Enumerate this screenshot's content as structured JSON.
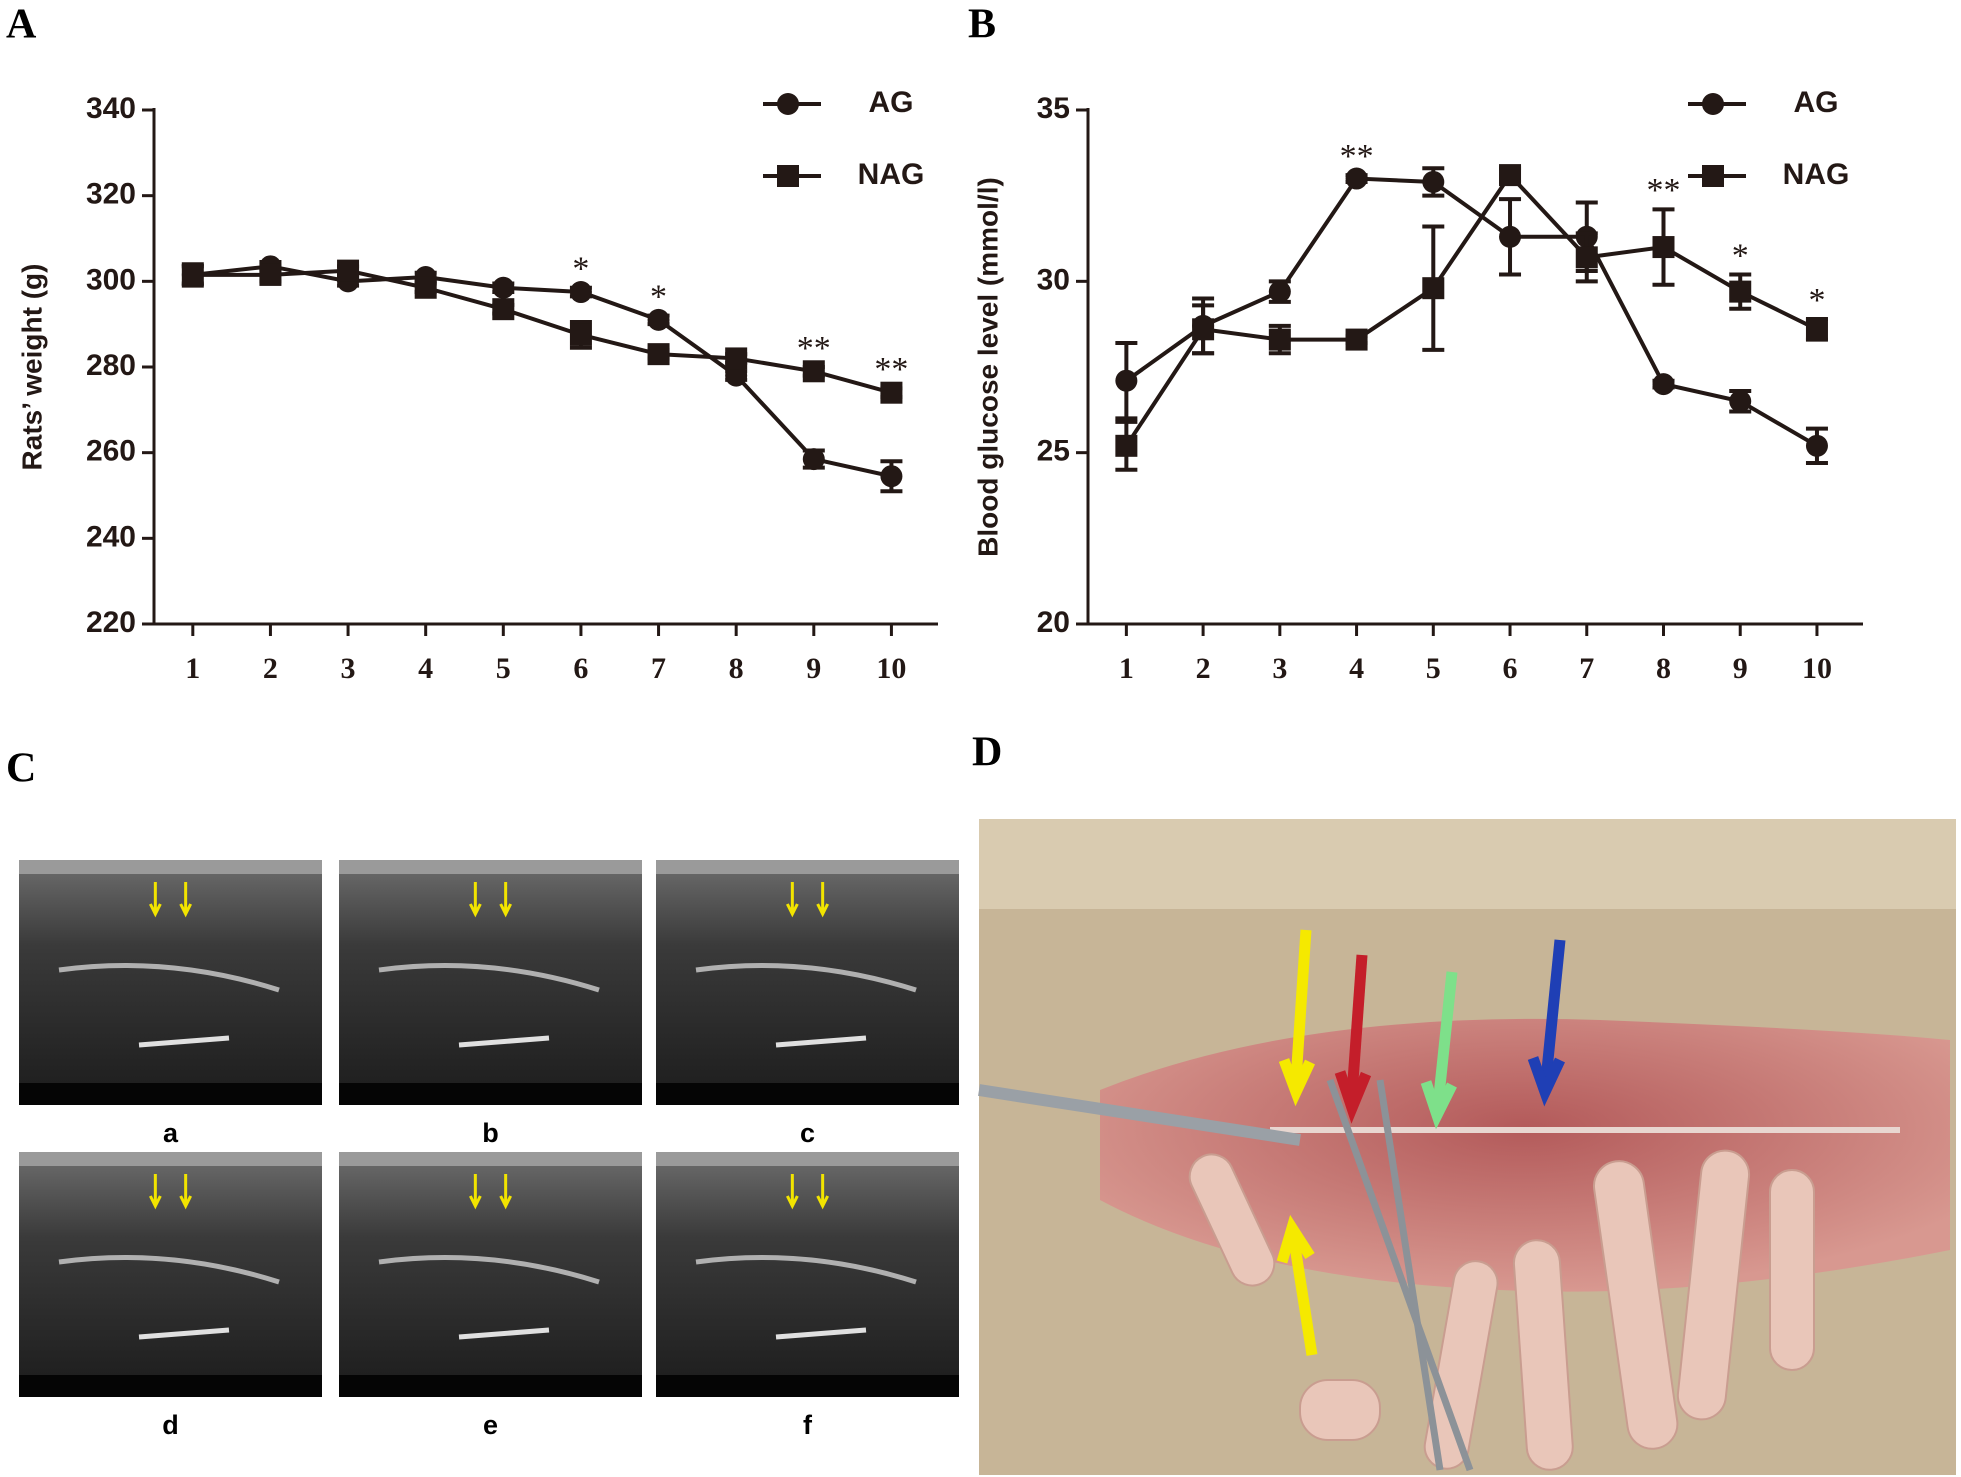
{
  "panel_labels": [
    "A",
    "B",
    "C",
    "D"
  ],
  "ultrasound_labels": [
    "a",
    "b",
    "c",
    "d",
    "e",
    "f"
  ],
  "chart_data": [
    {
      "type": "line",
      "ylabel": "Rats’ weight (g)",
      "x": [
        1,
        2,
        3,
        4,
        5,
        6,
        7,
        8,
        9,
        10
      ],
      "xlim": [
        0.5,
        10.6
      ],
      "xticks": [
        1,
        2,
        3,
        4,
        5,
        6,
        7,
        8,
        9,
        10
      ],
      "ylim": [
        220,
        340
      ],
      "yticks": [
        220,
        240,
        260,
        280,
        300,
        320,
        340
      ],
      "legend": "upper right",
      "series": [
        {
          "name": "AG",
          "color": "#231815",
          "marker": "circle",
          "values": [
            301.5,
            303.5,
            300,
            301,
            298.5,
            297.5,
            291,
            278,
            258.5,
            254.5
          ],
          "errors": [
            2,
            1,
            1,
            1,
            1,
            1,
            1,
            1,
            2,
            3.5
          ]
        },
        {
          "name": "NAG",
          "color": "#231815",
          "marker": "square",
          "values": [
            301.5,
            301.5,
            302.5,
            298.5,
            293.5,
            287.5,
            283,
            282,
            279,
            274
          ],
          "errors": [
            2.5,
            1.5,
            1,
            1,
            1,
            3,
            1,
            1,
            1,
            1
          ]
        }
      ],
      "annotations": [
        {
          "x": 6,
          "text": "*"
        },
        {
          "x": 7,
          "text": "*"
        },
        {
          "x": 9,
          "text": "**"
        },
        {
          "x": 10,
          "text": "**"
        }
      ]
    },
    {
      "type": "line",
      "ylabel": "Blood glucose level (mmol/l)",
      "x": [
        1,
        2,
        3,
        4,
        5,
        6,
        7,
        8,
        9,
        10
      ],
      "xlim": [
        0.5,
        10.6
      ],
      "xticks": [
        1,
        2,
        3,
        4,
        5,
        6,
        7,
        8,
        9,
        10
      ],
      "ylim": [
        20,
        35
      ],
      "yticks": [
        20,
        25,
        30,
        35
      ],
      "legend": "upper right",
      "series": [
        {
          "name": "AG",
          "color": "#231815",
          "marker": "circle",
          "values": [
            27.1,
            28.7,
            29.7,
            33.0,
            32.9,
            31.3,
            31.3,
            27.0,
            26.5,
            25.2
          ],
          "errors": [
            1.1,
            0.8,
            0.3,
            0.1,
            0.4,
            1.1,
            1.0,
            0.1,
            0.3,
            0.5
          ]
        },
        {
          "name": "NAG",
          "color": "#231815",
          "marker": "square",
          "values": [
            25.2,
            28.6,
            28.3,
            28.3,
            29.8,
            33.1,
            30.7,
            31.0,
            29.7,
            28.6
          ],
          "errors": [
            0.7,
            0.7,
            0.4,
            0.1,
            1.8,
            0.2,
            0.7,
            1.1,
            0.5,
            0.3
          ]
        }
      ],
      "annotations": [
        {
          "x": 4,
          "text": "**"
        },
        {
          "x": 8,
          "text": "**"
        },
        {
          "x": 9,
          "text": "*"
        },
        {
          "x": 10,
          "text": "*"
        }
      ]
    }
  ]
}
